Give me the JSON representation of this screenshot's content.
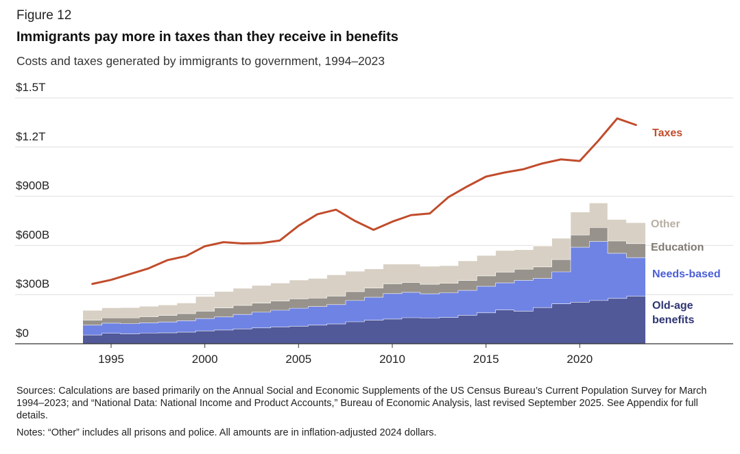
{
  "figure_label": "Figure 12",
  "title": "Immigrants pay more in taxes than they receive in benefits",
  "subtitle": "Costs and taxes generated by immigrants to government, 1994–2023",
  "sources": "Sources: Calculations are based primarily on the Annual Social and Economic Supplements of the US Census Bureau’s Current Population Survey for March 1994–2023; and “National Data: National Income and Product Accounts,” Bureau of Economic Analysis, last revised September 2025. See Appendix for full details.",
  "notes": "Notes: “Other” includes all prisons and police. All amounts are in inflation-adjusted 2024 dollars.",
  "chart_data": {
    "type": "area",
    "stacked": true,
    "step": true,
    "units": "billions of 2024 dollars",
    "x": [
      1994,
      1995,
      1996,
      1997,
      1998,
      1999,
      2000,
      2001,
      2002,
      2003,
      2004,
      2005,
      2006,
      2007,
      2008,
      2009,
      2010,
      2011,
      2012,
      2013,
      2014,
      2015,
      2016,
      2017,
      2018,
      2019,
      2020,
      2021,
      2022,
      2023
    ],
    "xticks": [
      {
        "value": 1995,
        "label": "1995"
      },
      {
        "value": 2000,
        "label": "2000"
      },
      {
        "value": 2005,
        "label": "2005"
      },
      {
        "value": 2010,
        "label": "2010"
      },
      {
        "value": 2015,
        "label": "2015"
      },
      {
        "value": 2020,
        "label": "2020"
      }
    ],
    "xlim": [
      1992,
      2031
    ],
    "ylim": [
      0,
      1500
    ],
    "yticks": [
      {
        "value": 0,
        "label": "$0"
      },
      {
        "value": 300,
        "label": "$300B"
      },
      {
        "value": 600,
        "label": "$600B"
      },
      {
        "value": 900,
        "label": "$900B"
      },
      {
        "value": 1200,
        "label": "$1.2T"
      },
      {
        "value": 1500,
        "label": "$1.5T"
      }
    ],
    "grid": true,
    "series": [
      {
        "name": "Old-age benefits",
        "color": "#515999",
        "values": [
          55,
          65,
          62,
          66,
          68,
          72,
          80,
          85,
          92,
          98,
          104,
          108,
          115,
          122,
          135,
          145,
          152,
          160,
          158,
          162,
          175,
          190,
          208,
          200,
          222,
          245,
          255,
          265,
          278,
          292
        ]
      },
      {
        "name": "Needs-based",
        "color": "#6f83e4",
        "values": [
          60,
          62,
          62,
          63,
          66,
          70,
          75,
          80,
          88,
          96,
          102,
          110,
          113,
          118,
          130,
          140,
          155,
          155,
          148,
          150,
          152,
          162,
          165,
          188,
          178,
          195,
          335,
          360,
          275,
          235
        ]
      },
      {
        "name": "Education",
        "color": "#97928b",
        "values": [
          30,
          32,
          35,
          37,
          40,
          43,
          45,
          55,
          55,
          55,
          56,
          57,
          52,
          52,
          54,
          56,
          60,
          60,
          58,
          58,
          60,
          63,
          65,
          68,
          70,
          75,
          75,
          85,
          75,
          85
        ]
      },
      {
        "name": "Other",
        "color": "#d8d0c4",
        "values": [
          60,
          62,
          63,
          64,
          64,
          65,
          90,
          100,
          105,
          108,
          110,
          115,
          120,
          130,
          125,
          117,
          120,
          112,
          110,
          108,
          120,
          125,
          132,
          119,
          128,
          130,
          140,
          150,
          132,
          128
        ]
      }
    ],
    "line_series": {
      "name": "Taxes",
      "color": "#c14c2c",
      "values": [
        365,
        390,
        425,
        460,
        510,
        535,
        595,
        620,
        612,
        614,
        630,
        720,
        790,
        818,
        750,
        695,
        745,
        785,
        795,
        895,
        960,
        1020,
        1045,
        1065,
        1100,
        1125,
        1115,
        1240,
        1375,
        1335
      ]
    },
    "labels": {
      "taxes": "Taxes",
      "other": "Other",
      "education": "Education",
      "needs_based": "Needs-based",
      "old_age_1": "Old-age",
      "old_age_2": "benefits"
    }
  }
}
